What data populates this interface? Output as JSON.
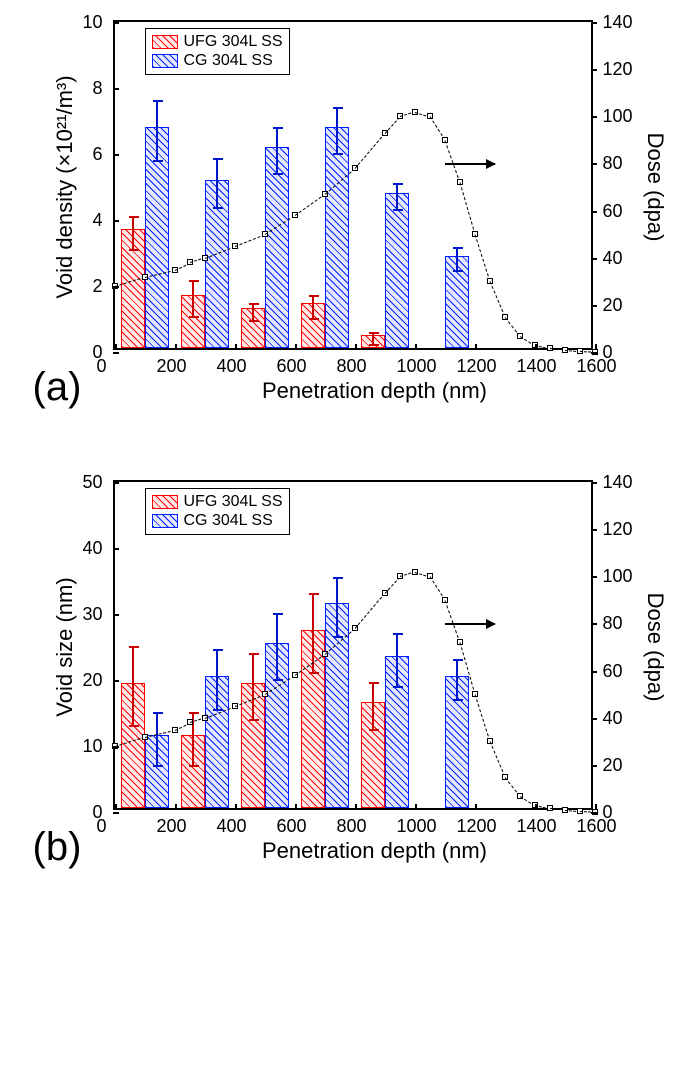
{
  "figure_width": 675,
  "figure_height": 1071,
  "colors": {
    "ufg_stroke": "#ff0000",
    "cg_stroke": "#0020ff",
    "bg": "#ffffff",
    "axis": "#000000"
  },
  "panels": [
    {
      "id": "a",
      "panel_label": "(a)",
      "ylabel_left": "Void density (×10²¹/m³)",
      "ylabel_right": "Dose (dpa)",
      "xlabel": "Penetration depth (nm)",
      "xlim": [
        0,
        1600
      ],
      "xtick_step": 200,
      "ylim_left": [
        0,
        10
      ],
      "ytick_left_step": 2,
      "ylim_right": [
        0,
        140
      ],
      "ytick_right_step": 20,
      "legend": [
        {
          "swatch": "ufg",
          "label": "UFG 304L SS"
        },
        {
          "swatch": "cg",
          "label": "CG 304L SS"
        }
      ],
      "bar_width_data": 80,
      "bars_ufg": {
        "x": [
          60,
          260,
          460,
          660,
          860
        ],
        "y": [
          3.6,
          1.6,
          1.2,
          1.35,
          0.4
        ],
        "err": [
          0.5,
          0.55,
          0.25,
          0.35,
          0.18
        ]
      },
      "bars_cg": {
        "x": [
          140,
          340,
          540,
          740,
          940,
          1140
        ],
        "y": [
          6.7,
          5.1,
          6.1,
          6.7,
          4.7,
          2.8
        ],
        "err": [
          0.9,
          0.75,
          0.7,
          0.7,
          0.4,
          0.35
        ]
      },
      "dose_curve": {
        "x": [
          0,
          100,
          200,
          250,
          300,
          400,
          500,
          600,
          700,
          800,
          900,
          950,
          1000,
          1050,
          1100,
          1150,
          1200,
          1250,
          1300,
          1350,
          1400,
          1450,
          1500,
          1550,
          1600
        ],
        "y": [
          28,
          32,
          35,
          38,
          40,
          45,
          50,
          58,
          67,
          78,
          93,
          100,
          102,
          100,
          90,
          72,
          50,
          30,
          15,
          7,
          3,
          1.5,
          1,
          0.5,
          0.2
        ]
      },
      "arrow_at": {
        "x_data": 1100,
        "y_right": 80
      }
    },
    {
      "id": "b",
      "panel_label": "(b)",
      "ylabel_left": "Void size (nm)",
      "ylabel_right": "Dose (dpa)",
      "xlabel": "Penetration depth (nm)",
      "xlim": [
        0,
        1600
      ],
      "xtick_step": 200,
      "ylim_left": [
        0,
        50
      ],
      "ytick_left_step": 10,
      "ylim_right": [
        0,
        140
      ],
      "ytick_right_step": 20,
      "legend": [
        {
          "swatch": "ufg",
          "label": "UFG 304L SS"
        },
        {
          "swatch": "cg",
          "label": "CG 304L SS"
        }
      ],
      "bar_width_data": 80,
      "bars_ufg": {
        "x": [
          60,
          260,
          460,
          660,
          860
        ],
        "y": [
          19,
          11,
          19,
          27,
          16
        ],
        "err": [
          6,
          4,
          5,
          6,
          3.5
        ]
      },
      "bars_cg": {
        "x": [
          140,
          340,
          540,
          740,
          940,
          1140
        ],
        "y": [
          11,
          20,
          25,
          31,
          23,
          20
        ],
        "err": [
          4,
          4.5,
          5,
          4.5,
          4,
          3
        ]
      },
      "dose_curve": {
        "x": [
          0,
          100,
          200,
          250,
          300,
          400,
          500,
          600,
          700,
          800,
          900,
          950,
          1000,
          1050,
          1100,
          1150,
          1200,
          1250,
          1300,
          1350,
          1400,
          1450,
          1500,
          1550,
          1600
        ],
        "y": [
          28,
          32,
          35,
          38,
          40,
          45,
          50,
          58,
          67,
          78,
          93,
          100,
          102,
          100,
          90,
          72,
          50,
          30,
          15,
          7,
          3,
          1.5,
          1,
          0.5,
          0.2
        ]
      },
      "arrow_at": {
        "x_data": 1100,
        "y_right": 80
      }
    }
  ]
}
